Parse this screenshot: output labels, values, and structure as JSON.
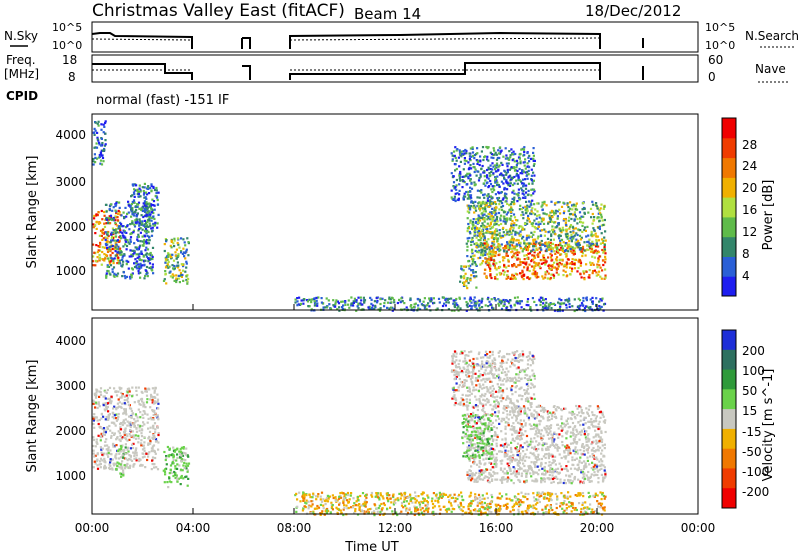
{
  "header": {
    "title": "Christmas Valley East (fitACF)",
    "beam": "Beam 14",
    "date": "18/Dec/2012"
  },
  "panels": {
    "nsky_label": "N.Sky",
    "nsearch_label": "N.Search",
    "nsky_ticks": [
      "10^5",
      "10^0"
    ],
    "nsearch_ticks": [
      "10^5",
      "10^0"
    ],
    "freq_label_1": "Freq.",
    "freq_label_2": "[MHz]",
    "freq_ticks": [
      "18",
      "8"
    ],
    "nave_label": "Nave",
    "nave_ticks": [
      "60",
      "0"
    ],
    "cpid_label": "CPID",
    "cpid_text": "normal (fast) -151 IF"
  },
  "colors": {
    "power": [
      "#1e1ef0",
      "#2a5fd6",
      "#33866b",
      "#5fbb4a",
      "#b0e040",
      "#f0b000",
      "#f07800",
      "#f03c00",
      "#f00000"
    ],
    "velocity": [
      "#1e2fd8",
      "#2e7060",
      "#2f9a3a",
      "#6ad24a",
      "#c8c8c0",
      "#f0b000",
      "#f07800",
      "#f03c00",
      "#f00000"
    ]
  },
  "chart_data": [
    {
      "type": "heatmap",
      "parameter": "power",
      "ylabel": "Slant Range [km]",
      "yticks": [
        "4000",
        "3000",
        "2000",
        "1000"
      ],
      "ylim": [
        200,
        4500
      ],
      "xlim": [
        0,
        24
      ],
      "colorbar_label": "Power [dB]",
      "colorbar_ticks": [
        "28",
        "24",
        "20",
        "16",
        "12",
        "8",
        "4"
      ],
      "regions": [
        {
          "t0": 0.0,
          "t1": 1.1,
          "r0": 1200,
          "r1": 2400,
          "level": "high"
        },
        {
          "t0": 0.0,
          "t1": 0.5,
          "r0": 3400,
          "r1": 4400,
          "level": "low"
        },
        {
          "t0": 0.5,
          "t1": 2.4,
          "r0": 900,
          "r1": 2600,
          "level": "low"
        },
        {
          "t0": 1.5,
          "t1": 2.6,
          "r0": 2000,
          "r1": 3000,
          "level": "low"
        },
        {
          "t0": 2.8,
          "t1": 3.8,
          "r0": 800,
          "r1": 1800,
          "level": "mid"
        },
        {
          "t0": 14.5,
          "t1": 15.2,
          "r0": 700,
          "r1": 1200,
          "level": "mid"
        },
        {
          "t0": 14.8,
          "t1": 16.0,
          "r0": 1200,
          "r1": 2600,
          "level": "mid"
        },
        {
          "t0": 15.5,
          "t1": 20.3,
          "r0": 900,
          "r1": 1700,
          "level": "high"
        },
        {
          "t0": 15.0,
          "t1": 20.3,
          "r0": 1500,
          "r1": 2600,
          "level": "mid"
        },
        {
          "t0": 14.2,
          "t1": 17.5,
          "r0": 2600,
          "r1": 3800,
          "level": "low"
        },
        {
          "t0": 8.0,
          "t1": 20.3,
          "r0": 200,
          "r1": 500,
          "level": "low"
        }
      ]
    },
    {
      "type": "heatmap",
      "parameter": "velocity",
      "ylabel": "Slant Range [km]",
      "xlabel": "Time UT",
      "xticks": [
        "00:00",
        "04:00",
        "08:00",
        "12:00",
        "16:00",
        "20:00",
        "00:00"
      ],
      "yticks": [
        "4000",
        "3000",
        "2000",
        "1000"
      ],
      "ylim": [
        200,
        4500
      ],
      "xlim": [
        0,
        24
      ],
      "colorbar_label": "Velocity [m s^-1]",
      "colorbar_ticks": [
        "200",
        "100",
        "50",
        "15",
        "-15",
        "-50",
        "-100",
        "-200"
      ],
      "regions": [
        {
          "t0": 0.0,
          "t1": 2.6,
          "r0": 1200,
          "r1": 3000,
          "level": "grey"
        },
        {
          "t0": 0.9,
          "t1": 1.3,
          "r0": 1000,
          "r1": 1700,
          "level": "green"
        },
        {
          "t0": 2.8,
          "t1": 3.8,
          "r0": 800,
          "r1": 1700,
          "level": "green"
        },
        {
          "t0": 14.8,
          "t1": 20.3,
          "r0": 900,
          "r1": 2600,
          "level": "grey"
        },
        {
          "t0": 14.6,
          "t1": 15.8,
          "r0": 1400,
          "r1": 2400,
          "level": "green"
        },
        {
          "t0": 14.2,
          "t1": 17.5,
          "r0": 2600,
          "r1": 3800,
          "level": "grey"
        },
        {
          "t0": 8.0,
          "t1": 20.3,
          "r0": 200,
          "r1": 700,
          "level": "orange"
        }
      ]
    }
  ]
}
